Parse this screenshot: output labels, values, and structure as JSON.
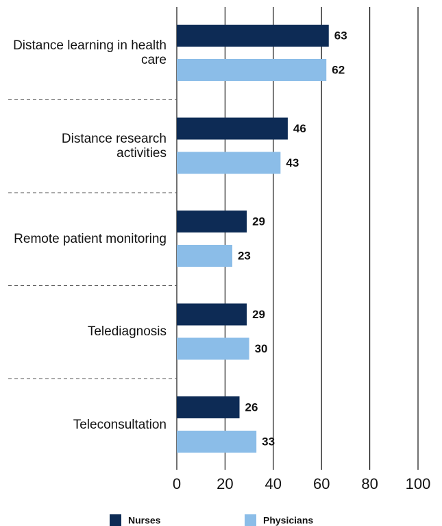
{
  "chart_data": {
    "type": "bar",
    "orientation": "horizontal",
    "categories": [
      "Distance learning in health care",
      "Distance research activities",
      "Remote patient monitoring",
      "Telediagnosis",
      "Teleconsultation"
    ],
    "series": [
      {
        "name": "Nurses",
        "color": "#0d2b55",
        "values": [
          63,
          46,
          29,
          29,
          26
        ]
      },
      {
        "name": "Physicians",
        "color": "#8bbde8",
        "values": [
          62,
          43,
          23,
          30,
          33
        ]
      }
    ],
    "xlim": [
      0,
      100
    ],
    "xticks": [
      0,
      20,
      40,
      60,
      80,
      100
    ],
    "grid": true
  }
}
